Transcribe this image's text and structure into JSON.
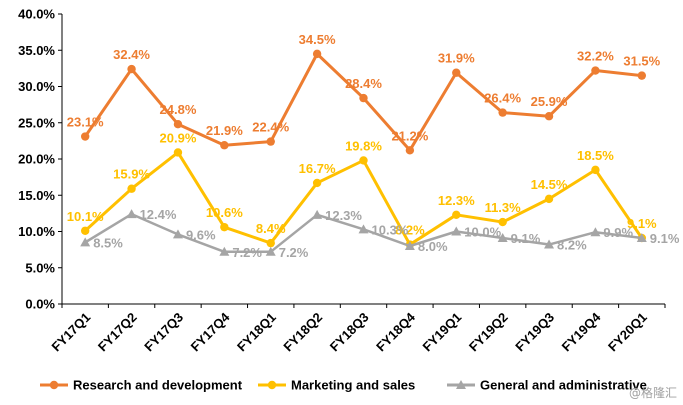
{
  "chart_data": {
    "type": "line",
    "categories": [
      "FY17Q1",
      "FY17Q2",
      "FY17Q3",
      "FY17Q4",
      "FY18Q1",
      "FY18Q2",
      "FY18Q3",
      "FY18Q4",
      "FY19Q1",
      "FY19Q2",
      "FY19Q3",
      "FY19Q4",
      "FY20Q1"
    ],
    "ylim": [
      0,
      40
    ],
    "yticks": [
      "0.0%",
      "5.0%",
      "10.0%",
      "15.0%",
      "20.0%",
      "25.0%",
      "30.0%",
      "35.0%",
      "40.0%"
    ],
    "grid": false,
    "legend_position": "bottom",
    "series": [
      {
        "name": "Research and development",
        "color": "#ED7D31",
        "marker": "circle",
        "values": [
          23.1,
          32.4,
          24.8,
          21.9,
          22.4,
          34.5,
          28.4,
          21.2,
          31.9,
          26.4,
          25.9,
          32.2,
          31.5
        ],
        "labels": [
          "23.1%",
          "32.4%",
          "24.8%",
          "21.9%",
          "22.4%",
          "34.5%",
          "28.4%",
          "21.2%",
          "31.9%",
          "26.4%",
          "25.9%",
          "32.2%",
          "31.5%"
        ]
      },
      {
        "name": "Marketing and sales",
        "color": "#FFC000",
        "marker": "circle",
        "values": [
          10.1,
          15.9,
          20.9,
          10.6,
          8.4,
          16.7,
          19.8,
          8.2,
          12.3,
          11.3,
          14.5,
          18.5,
          9.1
        ],
        "labels": [
          "10.1%",
          "15.9%",
          "20.9%",
          "10.6%",
          "8.4%",
          "16.7%",
          "19.8%",
          "8.2%",
          "12.3%",
          "11.3%",
          "14.5%",
          "18.5%",
          "9.1%"
        ]
      },
      {
        "name": "General and administrative",
        "color": "#A5A5A5",
        "marker": "triangle",
        "values": [
          8.5,
          12.4,
          9.6,
          7.2,
          7.2,
          12.3,
          10.3,
          8.0,
          10.0,
          9.1,
          8.2,
          9.9,
          9.1
        ],
        "labels": [
          "8.5%",
          "12.4%",
          "9.6%",
          "7.2%",
          "7.2%",
          "12.3%",
          "10.3%",
          "8.0%",
          "10.0%",
          "9.1%",
          "8.2%",
          "9.9%",
          "9.1%"
        ]
      }
    ]
  },
  "watermark": "格隆汇"
}
